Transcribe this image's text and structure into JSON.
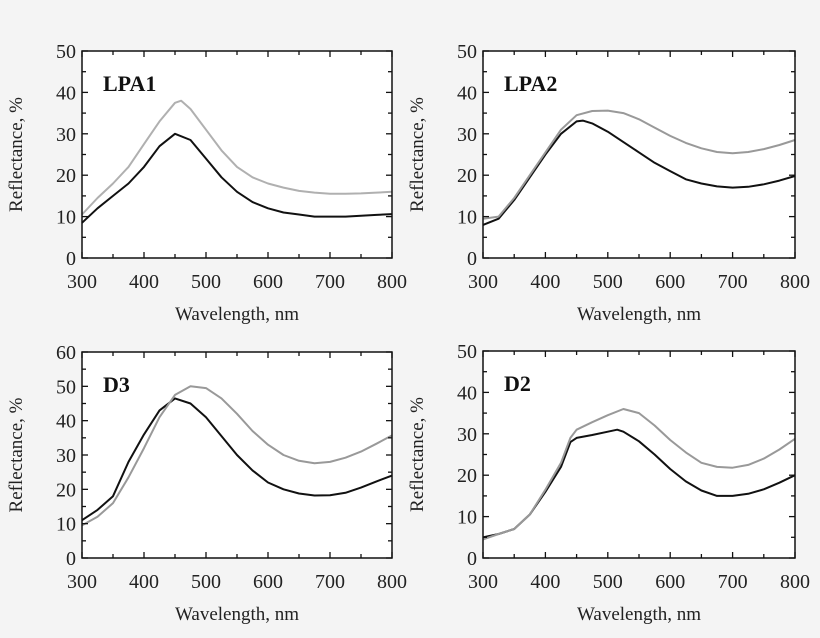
{
  "chart_data": [
    {
      "type": "line",
      "title": "LPA1",
      "xlabel": "Wavelength, nm",
      "ylabel": "Reflectance, %",
      "xlim": [
        300,
        800
      ],
      "ylim": [
        0,
        50
      ],
      "xticks": [
        300,
        400,
        500,
        600,
        700,
        800
      ],
      "yticks": [
        0,
        10,
        20,
        30,
        40,
        50
      ],
      "grid": false,
      "series": [
        {
          "color": "#111111",
          "x": [
            300,
            325,
            350,
            375,
            400,
            425,
            450,
            475,
            500,
            525,
            550,
            575,
            600,
            625,
            650,
            675,
            700,
            725,
            750,
            775,
            800
          ],
          "y": [
            8.5,
            12,
            15,
            18,
            22,
            27,
            30,
            28.5,
            24,
            19.5,
            16,
            13.5,
            12,
            11,
            10.5,
            10,
            10,
            10,
            10.2,
            10.4,
            10.6
          ]
        },
        {
          "color": "#b0b0b0",
          "x": [
            300,
            325,
            350,
            375,
            400,
            425,
            450,
            460,
            475,
            500,
            525,
            550,
            575,
            600,
            625,
            650,
            675,
            700,
            725,
            750,
            775,
            800
          ],
          "y": [
            10.5,
            14.5,
            18,
            22,
            27.5,
            33,
            37.5,
            38,
            36,
            31,
            26,
            22,
            19.5,
            18,
            17,
            16.2,
            15.8,
            15.5,
            15.5,
            15.6,
            15.8,
            16
          ]
        }
      ]
    },
    {
      "type": "line",
      "title": "LPA2",
      "xlabel": "Wavelength, nm",
      "ylabel": "Reflectance, %",
      "xlim": [
        300,
        800
      ],
      "ylim": [
        0,
        50
      ],
      "xticks": [
        300,
        400,
        500,
        600,
        700,
        800
      ],
      "yticks": [
        0,
        10,
        20,
        30,
        40,
        50
      ],
      "grid": false,
      "series": [
        {
          "color": "#111111",
          "x": [
            300,
            325,
            350,
            375,
            400,
            425,
            450,
            460,
            475,
            500,
            525,
            550,
            575,
            600,
            625,
            650,
            675,
            700,
            725,
            750,
            775,
            800
          ],
          "y": [
            8,
            9.5,
            14,
            19.5,
            25,
            30,
            33,
            33.2,
            32.5,
            30.5,
            28,
            25.5,
            23,
            21,
            19,
            18,
            17.3,
            17,
            17.2,
            17.8,
            18.7,
            19.8
          ]
        },
        {
          "color": "#999999",
          "x": [
            300,
            325,
            350,
            375,
            400,
            425,
            450,
            475,
            500,
            525,
            550,
            575,
            600,
            625,
            650,
            675,
            700,
            725,
            750,
            775,
            800
          ],
          "y": [
            9.5,
            10,
            14.5,
            20,
            25.5,
            31,
            34.5,
            35.5,
            35.6,
            35,
            33.5,
            31.5,
            29.5,
            27.8,
            26.5,
            25.6,
            25.3,
            25.6,
            26.3,
            27.3,
            28.5
          ]
        }
      ]
    },
    {
      "type": "line",
      "title": "D3",
      "xlabel": "Wavelength, nm",
      "ylabel": "Reflectance, %",
      "xlim": [
        300,
        800
      ],
      "ylim": [
        0,
        60
      ],
      "xticks": [
        300,
        400,
        500,
        600,
        700,
        800
      ],
      "yticks": [
        0,
        10,
        20,
        30,
        40,
        50,
        60
      ],
      "grid": false,
      "series": [
        {
          "color": "#111111",
          "x": [
            300,
            325,
            350,
            375,
            400,
            425,
            450,
            475,
            500,
            525,
            550,
            575,
            600,
            625,
            650,
            675,
            700,
            725,
            750,
            775,
            800
          ],
          "y": [
            11,
            14,
            18,
            28,
            36,
            43,
            46.5,
            45,
            41,
            35.5,
            30,
            25.5,
            22,
            20,
            18.8,
            18.2,
            18.3,
            19,
            20.5,
            22.3,
            24
          ]
        },
        {
          "color": "#999999",
          "x": [
            300,
            325,
            350,
            375,
            400,
            425,
            450,
            475,
            500,
            525,
            550,
            575,
            600,
            625,
            650,
            675,
            700,
            725,
            750,
            775,
            800
          ],
          "y": [
            9.5,
            12,
            16,
            23.5,
            32,
            41,
            47.5,
            50,
            49.5,
            46.5,
            42,
            37,
            33,
            30,
            28.3,
            27.6,
            28,
            29.2,
            31,
            33.3,
            35.7
          ]
        }
      ]
    },
    {
      "type": "line",
      "title": "D2",
      "xlabel": "Wavelength, nm",
      "ylabel": "Reflectance, %",
      "xlim": [
        300,
        800
      ],
      "ylim": [
        0,
        50
      ],
      "xticks": [
        300,
        400,
        500,
        600,
        700,
        800
      ],
      "yticks": [
        0,
        10,
        20,
        30,
        40,
        50
      ],
      "grid": false,
      "series": [
        {
          "color": "#111111",
          "x": [
            300,
            325,
            350,
            375,
            400,
            425,
            440,
            450,
            475,
            500,
            515,
            525,
            550,
            575,
            600,
            625,
            650,
            675,
            700,
            725,
            750,
            775,
            800
          ],
          "y": [
            5,
            5.8,
            7,
            10.5,
            16,
            22,
            28,
            29,
            29.7,
            30.5,
            31,
            30.5,
            28.2,
            25,
            21.5,
            18.5,
            16.3,
            15,
            15,
            15.5,
            16.6,
            18.2,
            20
          ]
        },
        {
          "color": "#999999",
          "x": [
            300,
            325,
            350,
            375,
            400,
            425,
            440,
            450,
            475,
            500,
            525,
            550,
            575,
            600,
            625,
            650,
            675,
            700,
            725,
            750,
            775,
            800
          ],
          "y": [
            4.5,
            5.8,
            7,
            10.5,
            16.5,
            23,
            29,
            31,
            32.8,
            34.5,
            36,
            35,
            32,
            28.5,
            25.5,
            23,
            22,
            21.8,
            22.5,
            24,
            26.2,
            28.8
          ]
        }
      ]
    }
  ]
}
